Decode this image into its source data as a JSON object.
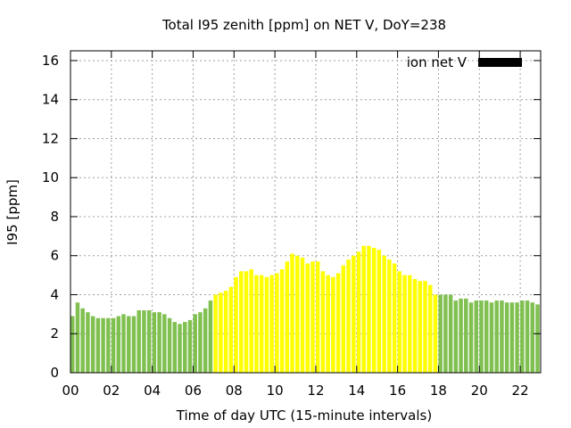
{
  "chart_data": {
    "type": "bar",
    "title": "Total I95 zenith [ppm] on NET V, DoY=238",
    "xlabel": "Time of day UTC (15-minute intervals)",
    "ylabel": "I95 [ppm]",
    "xlim": [
      0,
      23
    ],
    "ylim": [
      0,
      16.5
    ],
    "x_ticks": [
      "00",
      "02",
      "04",
      "06",
      "08",
      "10",
      "12",
      "14",
      "16",
      "18",
      "20",
      "22"
    ],
    "y_ticks": [
      "0",
      "2",
      "4",
      "6",
      "8",
      "10",
      "12",
      "14",
      "16"
    ],
    "grid": true,
    "legend": {
      "position": "top-right",
      "label": "ion net V",
      "color": "#000000"
    },
    "colors": {
      "night": "#80c050",
      "day": "#ffff00"
    },
    "bar_interval_hours": 0.25,
    "values": [
      2.9,
      3.6,
      3.3,
      3.1,
      2.9,
      2.8,
      2.8,
      2.8,
      2.8,
      2.9,
      3.0,
      2.9,
      2.9,
      3.2,
      3.2,
      3.2,
      3.1,
      3.1,
      3.0,
      2.8,
      2.6,
      2.5,
      2.6,
      2.7,
      3.0,
      3.1,
      3.3,
      3.7,
      4.0,
      4.1,
      4.2,
      4.4,
      4.9,
      5.2,
      5.2,
      5.3,
      5.0,
      5.0,
      4.9,
      5.0,
      5.1,
      5.3,
      5.7,
      6.1,
      6.0,
      5.9,
      5.6,
      5.7,
      5.7,
      5.2,
      5.0,
      4.9,
      5.1,
      5.5,
      5.8,
      6.0,
      6.2,
      6.5,
      6.5,
      6.4,
      6.3,
      6.0,
      5.8,
      5.6,
      5.2,
      5.0,
      5.0,
      4.8,
      4.7,
      4.7,
      4.5,
      4.0,
      4.0,
      4.0,
      4.0,
      3.7,
      3.8,
      3.8,
      3.6,
      3.7,
      3.7,
      3.7,
      3.6,
      3.7,
      3.7,
      3.6,
      3.6,
      3.6,
      3.7,
      3.7,
      3.6,
      3.5
    ],
    "day_range_index": [
      28,
      71
    ]
  }
}
